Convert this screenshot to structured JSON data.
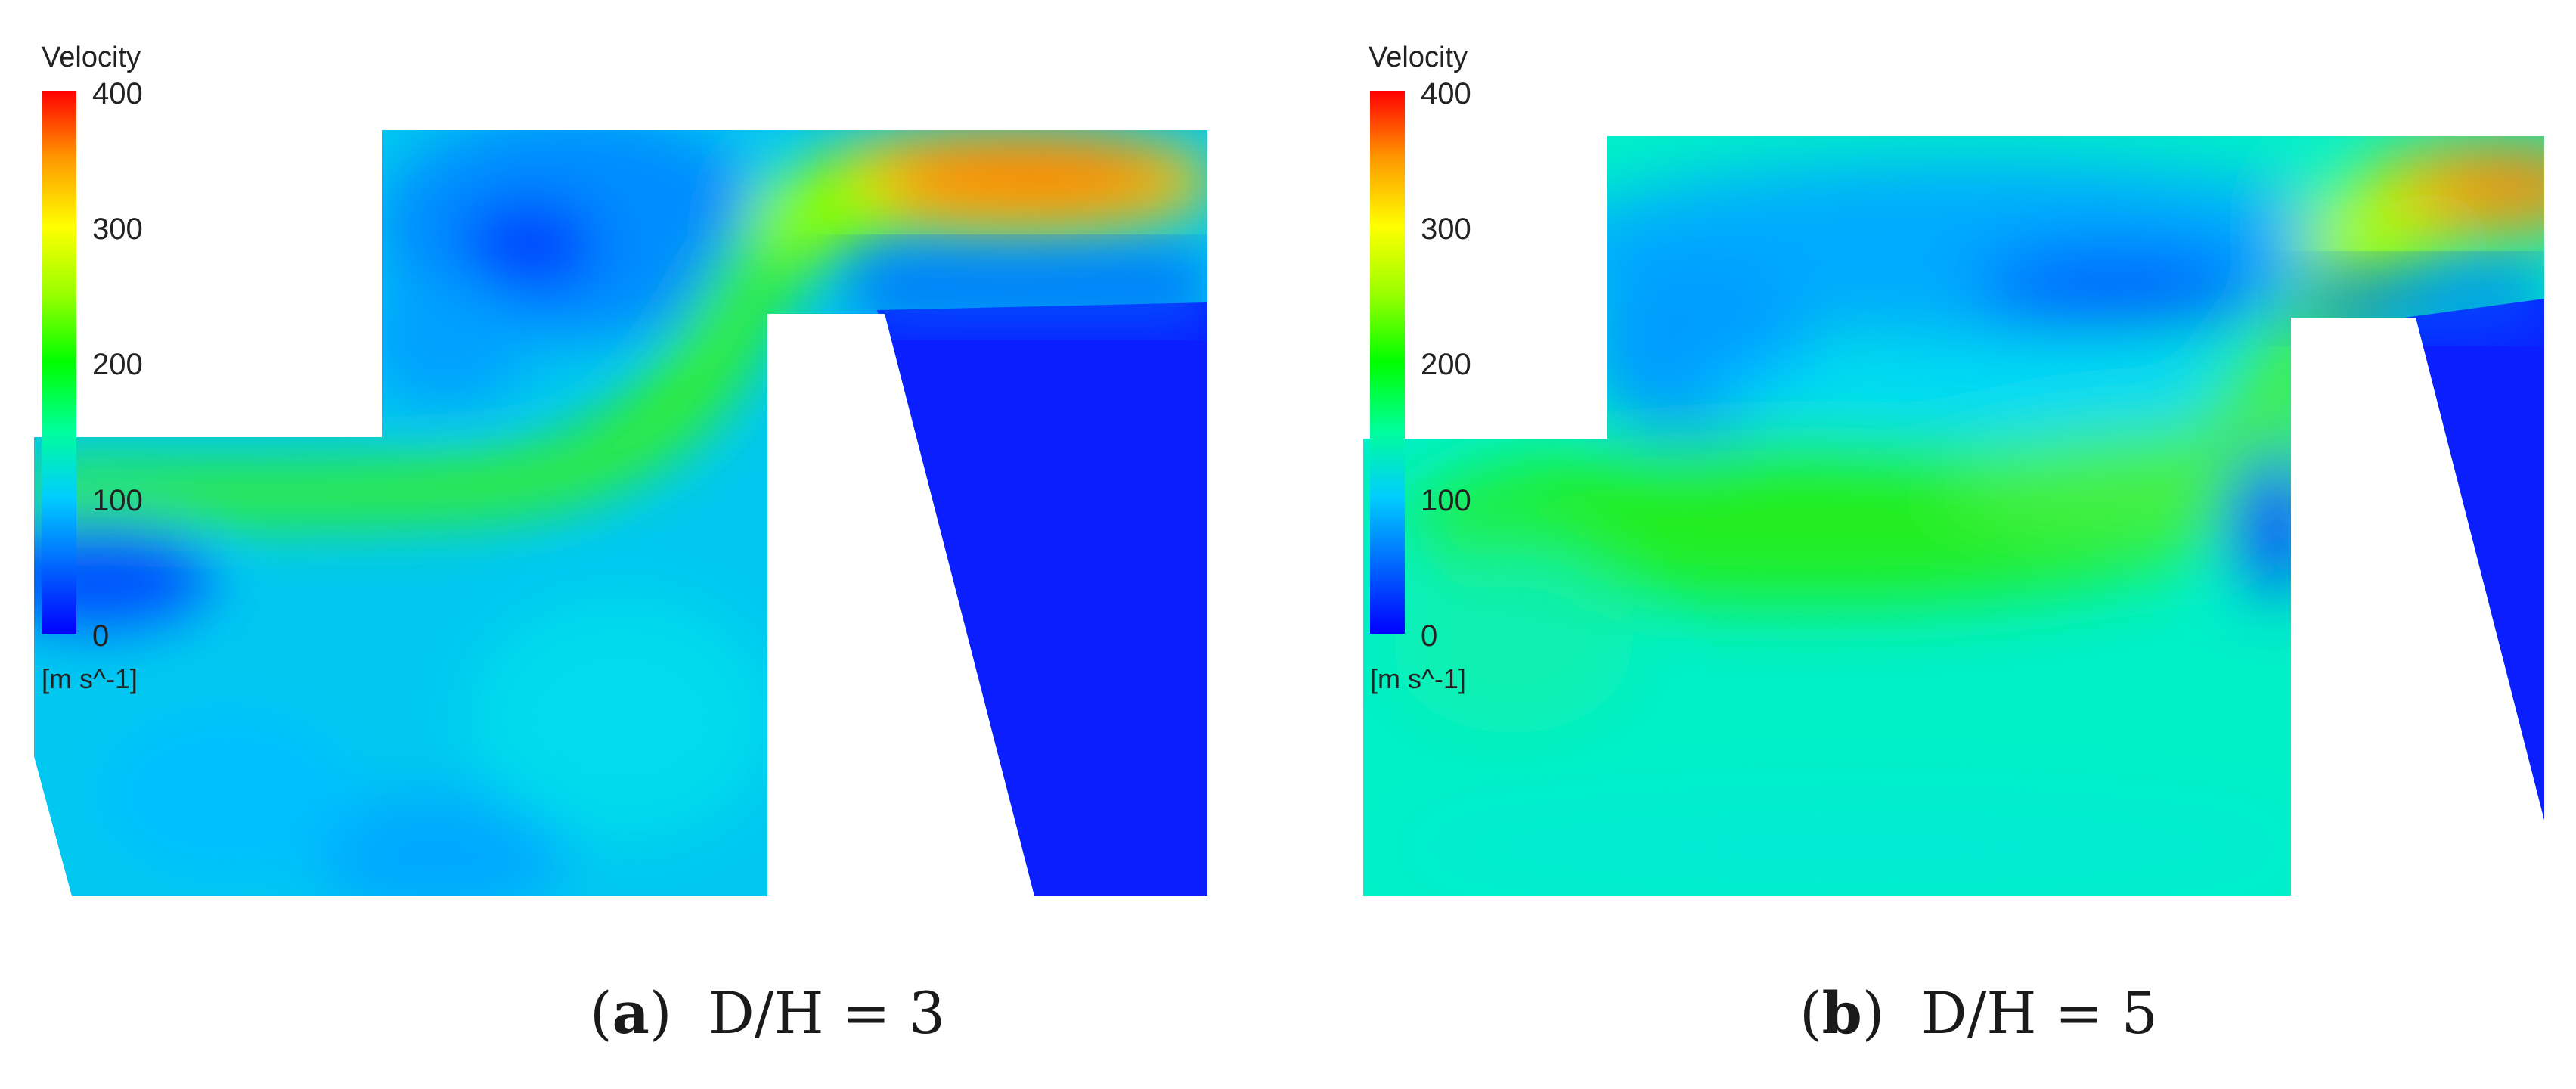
{
  "panels": [
    {
      "id": "a",
      "legend": {
        "title": "Velocity",
        "ticks": [
          "400",
          "300",
          "200",
          "100",
          "0"
        ],
        "unit": "[m s^-1]",
        "min": 0,
        "max": 400
      },
      "caption": {
        "letter": "a",
        "text": "D/H = 3"
      }
    },
    {
      "id": "b",
      "legend": {
        "title": "Velocity",
        "ticks": [
          "400",
          "300",
          "200",
          "100",
          "0"
        ],
        "unit": "[m s^-1]",
        "min": 0,
        "max": 400
      },
      "caption": {
        "letter": "b",
        "text": "D/H = 5"
      }
    }
  ],
  "colormap": [
    "#0000ff",
    "#0066ff",
    "#00ccff",
    "#00ff99",
    "#00ff00",
    "#99ff00",
    "#ffff00",
    "#ff9900",
    "#ff0000"
  ]
}
